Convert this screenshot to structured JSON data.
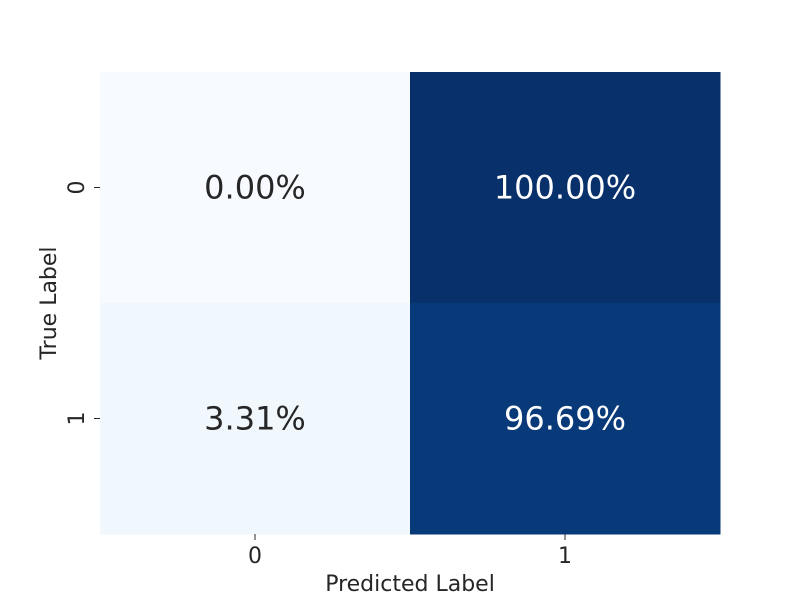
{
  "chart_data": {
    "type": "heatmap",
    "title": "",
    "xlabel": "Predicted Label",
    "ylabel": "True Label",
    "x_categories": [
      "0",
      "1"
    ],
    "y_categories": [
      "0",
      "1"
    ],
    "values": [
      [
        0.0,
        100.0
      ],
      [
        3.31,
        96.69
      ]
    ],
    "cell_labels": [
      [
        "0.00%",
        "100.00%"
      ],
      [
        "3.31%",
        "96.69%"
      ]
    ],
    "value_range": [
      0,
      100
    ],
    "colormap": "Blues",
    "colors": {
      "low": "#f7fbff",
      "high": "#08306b",
      "text_dark": "#262626",
      "text_light": "#ffffff"
    },
    "colorbar": false,
    "grid": false
  }
}
